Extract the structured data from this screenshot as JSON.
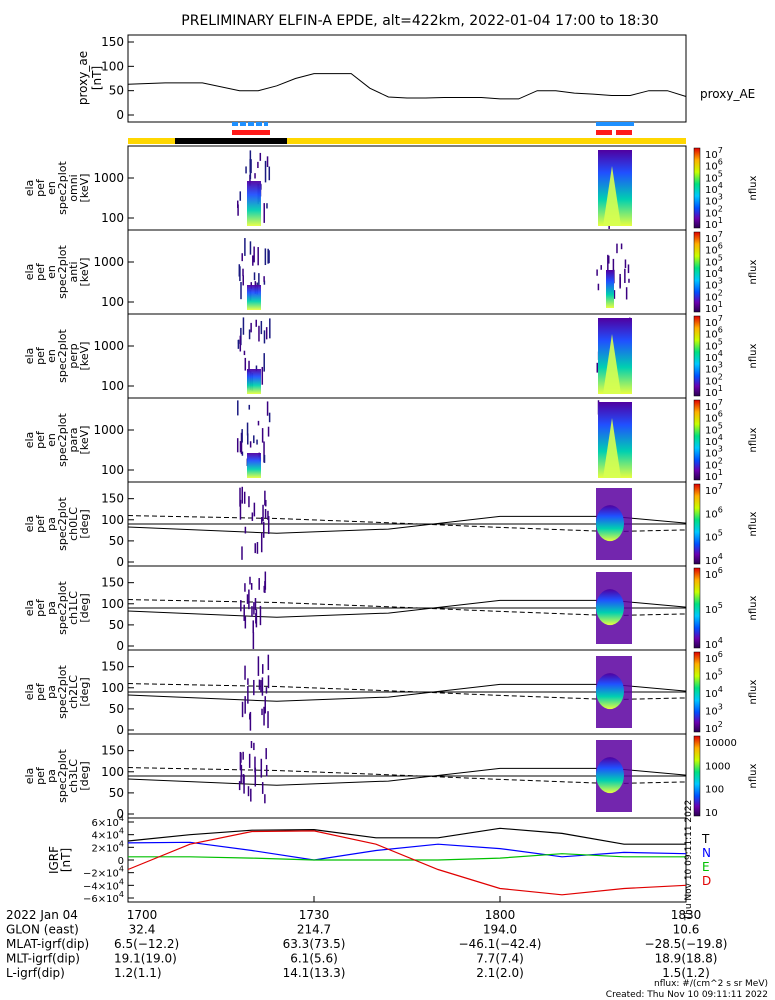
{
  "title": "PRELIMINARY ELFIN-A EPDE, alt=422km, 2022-01-04 17:00 to 18:30",
  "colors": {
    "trace": "#000000",
    "yellow_bar": "#ffd700",
    "black_bar": "#000000",
    "blue_marks": "#1e90ff",
    "red_marks": "#ff1a1a",
    "grf_t": "#000000",
    "grf_n": "#0000ff",
    "grf_e": "#00c000",
    "grf_d": "#e00000"
  },
  "chart_data": [
    {
      "type": "line",
      "panel": "proxy_ae",
      "ylabel": [
        "proxy_ae",
        "[nT]"
      ],
      "yticks": [
        "150",
        "100",
        "50",
        "0"
      ],
      "ylim": [
        0,
        150
      ],
      "right_label": "proxy_AE",
      "x_minutes": [
        0,
        6,
        12,
        18,
        21,
        24,
        27,
        30,
        33,
        36,
        39,
        42,
        45,
        48,
        51,
        54,
        57,
        60,
        63,
        66,
        69,
        72,
        75,
        78,
        81,
        84,
        87,
        90
      ],
      "values": [
        63,
        66,
        66,
        50,
        50,
        60,
        75,
        85,
        85,
        85,
        55,
        37,
        35,
        35,
        36,
        36,
        36,
        33,
        33,
        50,
        50,
        45,
        43,
        40,
        40,
        50,
        50,
        38
      ]
    },
    {
      "type": "heatmap",
      "panel": "spec2plot_omni",
      "ylabel": [
        "ela",
        "pef",
        "en",
        "spec2plot",
        "omni",
        "[keV]"
      ],
      "yticks": [
        "1000",
        "100"
      ],
      "cbar_ticks": [
        "10^7",
        "10^6",
        "10^5",
        "10^4",
        "10^3",
        "10^2",
        "10^1"
      ],
      "cbar_label": "nflux"
    },
    {
      "type": "heatmap",
      "panel": "spec2plot_anti",
      "ylabel": [
        "ela",
        "pef",
        "en",
        "spec2plot",
        "anti",
        "[keV]"
      ],
      "yticks": [
        "1000",
        "100"
      ],
      "cbar_ticks": [
        "10^7",
        "10^6",
        "10^5",
        "10^4",
        "10^3",
        "10^2",
        "10^1"
      ],
      "cbar_label": "nflux"
    },
    {
      "type": "heatmap",
      "panel": "spec2plot_perp",
      "ylabel": [
        "ela",
        "pef",
        "en",
        "spec2plot",
        "perp",
        "[keV]"
      ],
      "yticks": [
        "1000",
        "100"
      ],
      "cbar_ticks": [
        "10^7",
        "10^6",
        "10^5",
        "10^4",
        "10^3",
        "10^2",
        "10^1"
      ],
      "cbar_label": "nflux"
    },
    {
      "type": "heatmap",
      "panel": "spec2plot_para",
      "ylabel": [
        "ela",
        "pef",
        "en",
        "spec2plot",
        "para",
        "[keV]"
      ],
      "yticks": [
        "1000",
        "100"
      ],
      "cbar_ticks": [
        "10^7",
        "10^6",
        "10^5",
        "10^4",
        "10^3",
        "10^2",
        "10^1"
      ],
      "cbar_label": "nflux"
    },
    {
      "type": "heatmap",
      "panel": "spec2plot_ch0LC",
      "ylabel": [
        "ela",
        "pef",
        "pa",
        "spec2plot",
        "ch0LC",
        "[deg]"
      ],
      "yticks": [
        "150",
        "100",
        "50",
        "0"
      ],
      "ylim": [
        0,
        180
      ],
      "cbar_ticks": [
        "10^7",
        "10^6",
        "10^5",
        "10^4"
      ],
      "cbar_label": "nflux"
    },
    {
      "type": "heatmap",
      "panel": "spec2plot_ch1LC",
      "ylabel": [
        "ela",
        "pef",
        "pa",
        "spec2plot",
        "ch1LC",
        "[deg]"
      ],
      "yticks": [
        "150",
        "100",
        "50",
        "0"
      ],
      "ylim": [
        0,
        180
      ],
      "cbar_ticks": [
        "10^6",
        "10^5",
        "10^4"
      ],
      "cbar_label": "nflux"
    },
    {
      "type": "heatmap",
      "panel": "spec2plot_ch2LC",
      "ylabel": [
        "ela",
        "pef",
        "pa",
        "spec2plot",
        "ch2LC",
        "[deg]"
      ],
      "yticks": [
        "150",
        "100",
        "50",
        "0"
      ],
      "ylim": [
        0,
        180
      ],
      "cbar_ticks": [
        "10^6",
        "10^5",
        "10^4",
        "10^3",
        "10^2"
      ],
      "cbar_label": "nflux"
    },
    {
      "type": "heatmap",
      "panel": "spec2plot_ch3LC",
      "ylabel": [
        "ela",
        "pef",
        "pa",
        "spec2plot",
        "ch3LC",
        "[deg]"
      ],
      "yticks": [
        "150",
        "100",
        "50",
        "0"
      ],
      "ylim": [
        0,
        180
      ],
      "cbar_ticks": [
        "10000",
        "1000",
        "100",
        "10"
      ],
      "cbar_label": "nflux"
    },
    {
      "type": "line",
      "panel": "IGRF",
      "ylabel": [
        "IGRF",
        "[nT]"
      ],
      "yticks": [
        "6×10^4",
        "4×10^4",
        "2×10^4",
        "0",
        "−2×10^4",
        "−4×10^4",
        "−6×10^4"
      ],
      "ylim": [
        -60000,
        60000
      ],
      "legend": [
        "T",
        "N",
        "E",
        "D"
      ],
      "side_text": "Thu Nov 10 09:11:11 2022",
      "x_minutes": [
        0,
        10,
        20,
        30,
        40,
        50,
        60,
        70,
        80,
        90
      ],
      "series": [
        {
          "name": "T",
          "values": [
            30000,
            40000,
            47000,
            48000,
            35000,
            35000,
            50000,
            42000,
            25000,
            25000
          ]
        },
        {
          "name": "N",
          "values": [
            27000,
            28000,
            15000,
            0,
            15000,
            25000,
            18000,
            5000,
            12000,
            10000
          ]
        },
        {
          "name": "E",
          "values": [
            5000,
            5000,
            3000,
            0,
            0,
            0,
            3000,
            10000,
            5000,
            5000
          ]
        },
        {
          "name": "D",
          "values": [
            -15000,
            25000,
            45000,
            46000,
            25000,
            -15000,
            -45000,
            -55000,
            -45000,
            -40000
          ]
        }
      ]
    }
  ],
  "footer": {
    "rows": [
      {
        "label": "2022 Jan 04",
        "v": [
          "1700",
          "1730",
          "1800",
          "1830"
        ]
      },
      {
        "label": "GLON (east)",
        "v": [
          "32.4",
          "214.7",
          "194.0",
          "10.6"
        ]
      },
      {
        "label": "MLAT-igrf(dip)",
        "v": "6.5(−12.2)",
        "v2": [
          "63.3(73.5)",
          "−46.1(−42.4)",
          "−28.5(−19.8)"
        ]
      },
      {
        "label": "MLT-igrf(dip)",
        "v": "19.1(19.0)",
        "v2": [
          "6.1(5.6)",
          "7.7(7.4)",
          "18.9(18.8)"
        ]
      },
      {
        "label": "L-igrf(dip)",
        "v": "1.2(1.1)",
        "v2": [
          "14.1(13.3)",
          "2.1(2.0)",
          "1.5(1.2)"
        ]
      }
    ],
    "units_note": "nflux: #/(cm^2 s sr MeV)",
    "created": "Created: Thu Nov 10 09:11:11 2022"
  }
}
